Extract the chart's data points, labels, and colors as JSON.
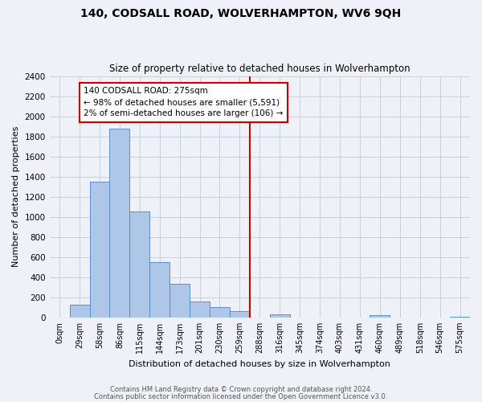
{
  "title": "140, CODSALL ROAD, WOLVERHAMPTON, WV6 9QH",
  "subtitle": "Size of property relative to detached houses in Wolverhampton",
  "xlabel": "Distribution of detached houses by size in Wolverhampton",
  "ylabel": "Number of detached properties",
  "bar_labels": [
    "0sqm",
    "29sqm",
    "58sqm",
    "86sqm",
    "115sqm",
    "144sqm",
    "173sqm",
    "201sqm",
    "230sqm",
    "259sqm",
    "288sqm",
    "316sqm",
    "345sqm",
    "374sqm",
    "403sqm",
    "431sqm",
    "460sqm",
    "489sqm",
    "518sqm",
    "546sqm",
    "575sqm"
  ],
  "bar_values": [
    0,
    125,
    1350,
    1880,
    1050,
    550,
    335,
    160,
    105,
    60,
    0,
    30,
    0,
    0,
    0,
    0,
    20,
    0,
    0,
    0,
    10
  ],
  "bar_color": "#aec6e8",
  "bar_edge_color": "#5b8fc9",
  "ylim": [
    0,
    2400
  ],
  "yticks": [
    0,
    200,
    400,
    600,
    800,
    1000,
    1200,
    1400,
    1600,
    1800,
    2000,
    2200,
    2400
  ],
  "marker_line_color": "#cc0000",
  "annotation_title": "140 CODSALL ROAD: 275sqm",
  "annotation_line1": "← 98% of detached houses are smaller (5,591)",
  "annotation_line2": "2% of semi-detached houses are larger (106) →",
  "annotation_box_color": "#cc0000",
  "bg_color": "#eef2f8",
  "grid_color": "#c8d0dc",
  "footer1": "Contains HM Land Registry data © Crown copyright and database right 2024.",
  "footer2": "Contains public sector information licensed under the Open Government Licence v3.0."
}
